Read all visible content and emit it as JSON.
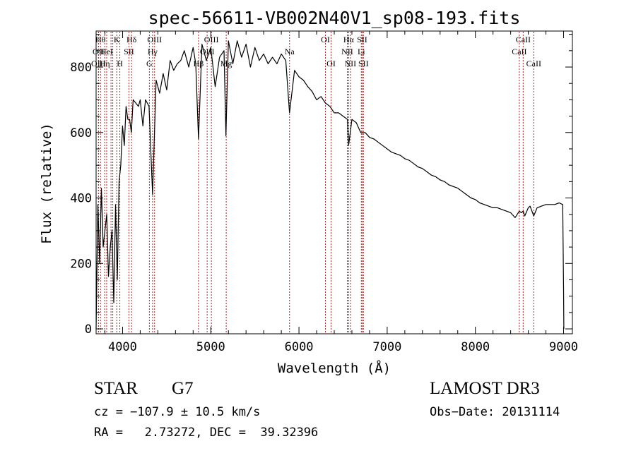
{
  "chart_data": {
    "type": "line",
    "title": "spec-56611-VB002N40V1_sp08-193.fits",
    "xlabel": "Wavelength (Å)",
    "ylabel": "Flux (relative)",
    "xlim": [
      3700,
      9100
    ],
    "ylim": [
      -15,
      910
    ],
    "xticks": [
      4000,
      5000,
      6000,
      7000,
      8000,
      9000
    ],
    "yticks": [
      0,
      200,
      400,
      600,
      800
    ],
    "xminor_step": 200,
    "yminor_step": 50,
    "grid": false,
    "line_color": "#000000",
    "marker_color": "#b22222",
    "series": [
      {
        "name": "flux",
        "x": [
          3700,
          3720,
          3740,
          3760,
          3780,
          3800,
          3820,
          3840,
          3860,
          3880,
          3900,
          3920,
          3940,
          3960,
          3980,
          4000,
          4020,
          4040,
          4060,
          4080,
          4100,
          4120,
          4150,
          4180,
          4200,
          4230,
          4260,
          4300,
          4340,
          4380,
          4420,
          4460,
          4500,
          4540,
          4580,
          4620,
          4660,
          4700,
          4750,
          4800,
          4830,
          4861,
          4900,
          4950,
          5000,
          5050,
          5100,
          5150,
          5172,
          5200,
          5250,
          5300,
          5350,
          5400,
          5450,
          5500,
          5550,
          5600,
          5650,
          5700,
          5750,
          5800,
          5850,
          5893,
          5950,
          6000,
          6050,
          6100,
          6150,
          6200,
          6250,
          6300,
          6350,
          6400,
          6450,
          6500,
          6550,
          6563,
          6600,
          6650,
          6700,
          6750,
          6800,
          6850,
          6900,
          6950,
          7000,
          7050,
          7100,
          7150,
          7200,
          7250,
          7300,
          7350,
          7400,
          7450,
          7500,
          7550,
          7600,
          7650,
          7700,
          7750,
          7800,
          7850,
          7900,
          7950,
          8000,
          8050,
          8100,
          8150,
          8200,
          8250,
          8300,
          8350,
          8400,
          8450,
          8498,
          8520,
          8542,
          8560,
          8600,
          8620,
          8662,
          8700,
          8750,
          8800,
          8850,
          8900,
          8950,
          8990,
          9000,
          9003
        ],
        "y": [
          0,
          380,
          200,
          430,
          250,
          300,
          350,
          160,
          250,
          300,
          80,
          380,
          150,
          450,
          500,
          620,
          560,
          680,
          640,
          640,
          600,
          700,
          690,
          680,
          700,
          620,
          700,
          680,
          410,
          760,
          720,
          780,
          730,
          820,
          790,
          810,
          820,
          850,
          800,
          860,
          810,
          580,
          870,
          820,
          860,
          740,
          830,
          850,
          590,
          880,
          810,
          880,
          830,
          870,
          800,
          860,
          820,
          840,
          810,
          830,
          810,
          840,
          820,
          660,
          790,
          770,
          760,
          740,
          725,
          700,
          710,
          690,
          680,
          660,
          660,
          650,
          640,
          560,
          640,
          630,
          600,
          600,
          585,
          580,
          570,
          560,
          550,
          540,
          535,
          530,
          520,
          515,
          505,
          495,
          490,
          480,
          470,
          465,
          455,
          450,
          440,
          435,
          430,
          420,
          410,
          400,
          395,
          385,
          380,
          375,
          370,
          370,
          365,
          360,
          355,
          340,
          360,
          355,
          360,
          345,
          370,
          375,
          345,
          370,
          375,
          380,
          380,
          380,
          385,
          380,
          120,
          0
        ]
      }
    ],
    "line_markers": [
      {
        "x": 3750,
        "label": "Hθ",
        "row": 1
      },
      {
        "x": 3727,
        "label": "OII",
        "row": 2
      },
      {
        "x": 3727,
        "label": "OIII",
        "row": 3
      },
      {
        "x": 3797,
        "label": "Hη",
        "row": 3
      },
      {
        "x": 3820,
        "label": "HeI",
        "row": 2
      },
      {
        "x": 3869,
        "label": "",
        "row": 0
      },
      {
        "x": 3889,
        "label": "",
        "row": 0
      },
      {
        "x": 3934,
        "label": "K",
        "row": 1
      },
      {
        "x": 3969,
        "label": "H",
        "row": 3
      },
      {
        "x": 4072,
        "label": "SII",
        "row": 2
      },
      {
        "x": 4102,
        "label": "Hδ",
        "row": 1
      },
      {
        "x": 4304,
        "label": "G",
        "row": 3
      },
      {
        "x": 4340,
        "label": "Hγ",
        "row": 2
      },
      {
        "x": 4363,
        "label": "OIII",
        "row": 1
      },
      {
        "x": 4861,
        "label": "Hβ",
        "row": 3
      },
      {
        "x": 4959,
        "label": "OIII",
        "row": 2
      },
      {
        "x": 5007,
        "label": "OIII",
        "row": 1
      },
      {
        "x": 5175,
        "label": "Mg",
        "row": 3
      },
      {
        "x": 5893,
        "label": "Na",
        "row": 2
      },
      {
        "x": 6300,
        "label": "OI",
        "row": 1
      },
      {
        "x": 6364,
        "label": "OI",
        "row": 3
      },
      {
        "x": 6548,
        "label": "NII",
        "row": 2
      },
      {
        "x": 6563,
        "label": "Hα",
        "row": 1
      },
      {
        "x": 6583,
        "label": "NII",
        "row": 3
      },
      {
        "x": 6707,
        "label": "Li",
        "row": 2
      },
      {
        "x": 6716,
        "label": "SII",
        "row": 1
      },
      {
        "x": 6731,
        "label": "SII",
        "row": 3
      },
      {
        "x": 8498,
        "label": "CaII",
        "row": 2
      },
      {
        "x": 8542,
        "label": "CaII",
        "row": 1
      },
      {
        "x": 8662,
        "label": "CaII",
        "row": 3
      }
    ]
  },
  "info": {
    "class_label": "STAR",
    "subclass_label": "G7",
    "survey_label": "LAMOST DR3",
    "redshift_line": "cz = −107.9 ± 10.5 km/s",
    "obs_date_line": "Obs−Date: 20131114",
    "coords_line": "RA =   2.73272, DEC =  39.32396"
  }
}
